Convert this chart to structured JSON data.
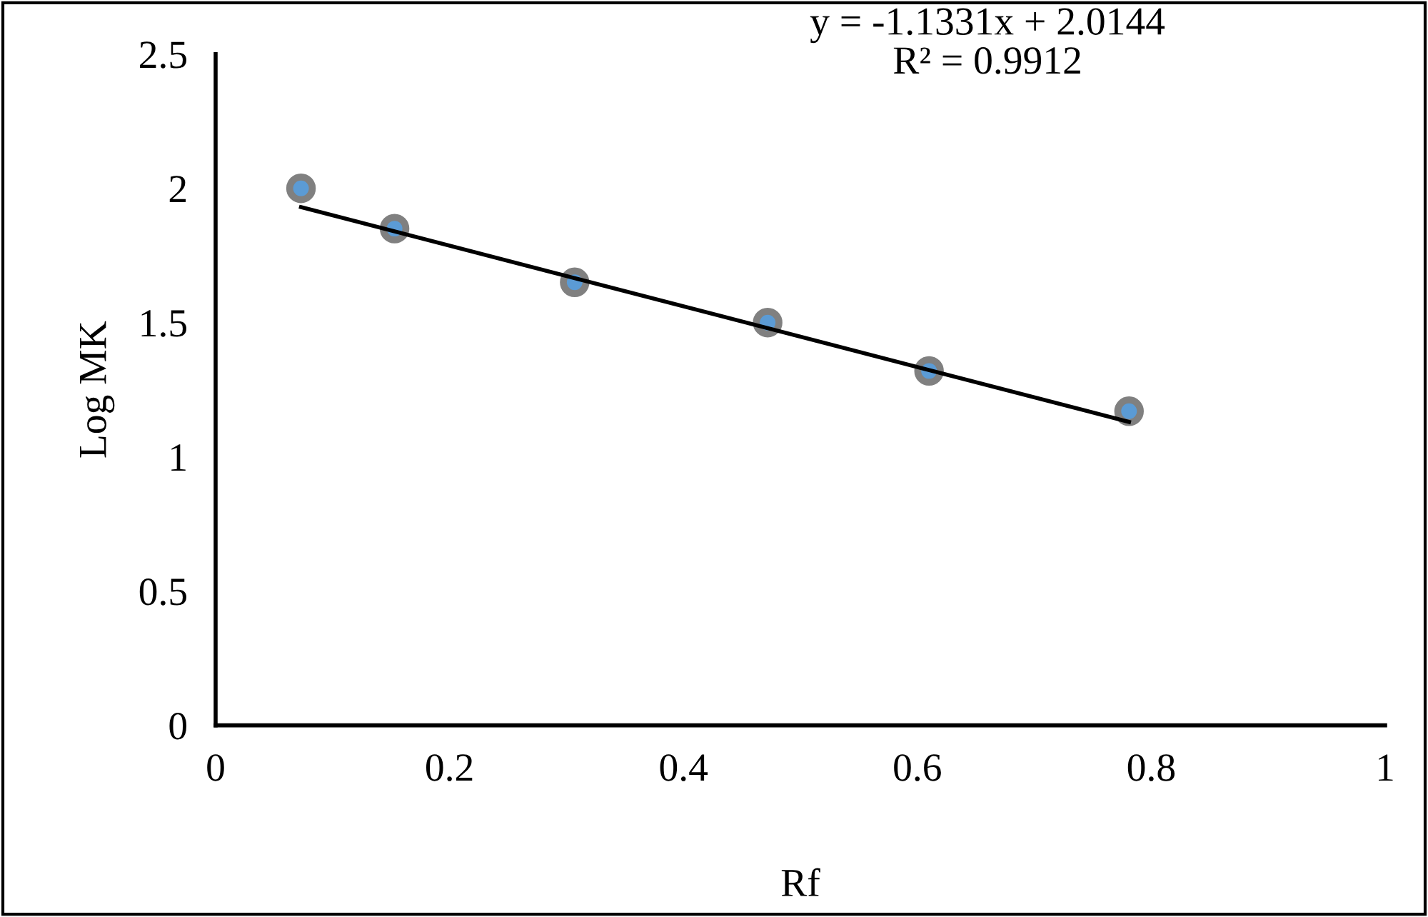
{
  "chart_data": {
    "type": "scatter",
    "xlabel": "Rf",
    "ylabel": "Log MK",
    "xlim": [
      0,
      1
    ],
    "xticks": [
      0,
      0.2,
      0.4,
      0.6,
      0.8,
      1
    ],
    "ylim": [
      0,
      2.5
    ],
    "yticks": [
      0,
      0.5,
      1,
      1.5,
      2,
      2.5
    ],
    "grid": false,
    "series": [
      {
        "marker": "circle",
        "color": "#5b9bd5",
        "x": [
          0.073,
          0.153,
          0.307,
          0.472,
          0.61,
          0.781
        ],
        "values": [
          2.0,
          1.85,
          1.65,
          1.5,
          1.32,
          1.17
        ]
      },
      {
        "type": "line",
        "marker": "none",
        "color": "#000000",
        "x": [
          0.073,
          0.781
        ],
        "values": [
          1.93,
          1.13
        ]
      }
    ],
    "annotations": [
      "y = -1.1331x + 2.0144",
      "R² = 0.9912"
    ]
  }
}
